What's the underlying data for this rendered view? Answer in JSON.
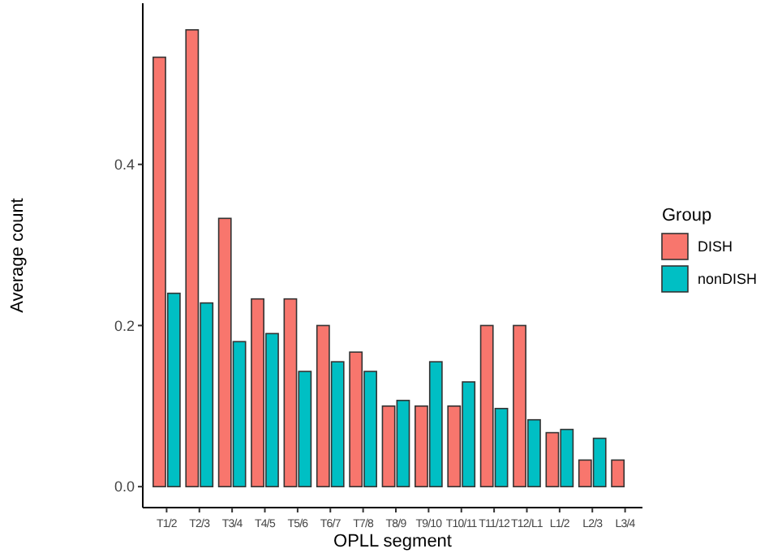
{
  "chart_data": {
    "type": "bar",
    "xlabel": "OPLL segment",
    "ylabel": "Average count",
    "legend_title": "Group",
    "legend": "right",
    "categories": [
      "T1/2",
      "T2/3",
      "T3/4",
      "T4/5",
      "T5/6",
      "T6/7",
      "T7/8",
      "T8/9",
      "T9/10",
      "T10/11",
      "T11/12",
      "T12/L1",
      "L1/2",
      "L2/3",
      "L3/4"
    ],
    "series": [
      {
        "name": "DISH",
        "color": "#f8766d",
        "values": [
          0.533,
          0.567,
          0.333,
          0.233,
          0.233,
          0.2,
          0.167,
          0.1,
          0.1,
          0.1,
          0.2,
          0.2,
          0.067,
          0.033,
          0.033
        ]
      },
      {
        "name": "nonDISH",
        "color": "#00bfc4",
        "values": [
          0.24,
          0.228,
          0.18,
          0.19,
          0.143,
          0.155,
          0.143,
          0.107,
          0.155,
          0.13,
          0.097,
          0.083,
          0.071,
          0.06,
          0
        ]
      }
    ],
    "ylim": [
      -0.026,
      0.6
    ],
    "yticks": [
      {
        "value": 0,
        "label": "0.0"
      },
      {
        "value": 0.2,
        "label": "0.2"
      },
      {
        "value": 0.4,
        "label": "0.4"
      }
    ],
    "grid": false
  }
}
